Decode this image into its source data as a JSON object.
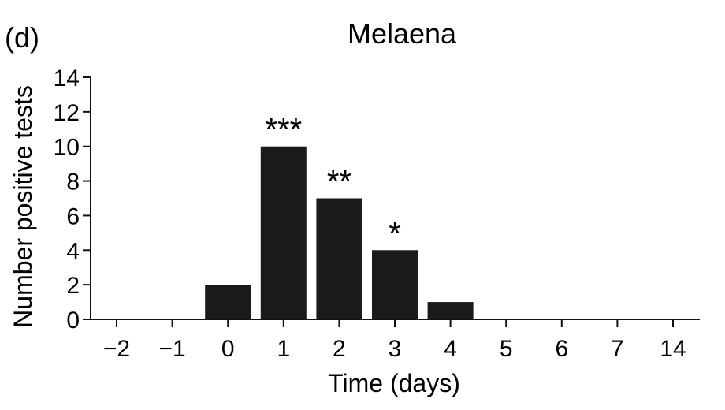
{
  "panel_label": "(d)",
  "chart_data": {
    "type": "bar",
    "title": "Melaena",
    "xlabel": "Time (days)",
    "ylabel": "Number positive tests",
    "categories": [
      "−2",
      "−1",
      "0",
      "1",
      "2",
      "3",
      "4",
      "5",
      "6",
      "7",
      "14"
    ],
    "values": [
      0,
      0,
      2,
      10,
      7,
      4,
      1,
      0,
      0,
      0,
      0
    ],
    "annotations": [
      "",
      "",
      "",
      "***",
      "**",
      "*",
      "",
      "",
      "",
      "",
      ""
    ],
    "ylim": [
      0,
      14
    ],
    "yticks": [
      "0",
      "2",
      "4",
      "6",
      "8",
      "10",
      "12",
      "14"
    ],
    "bar_color": "#1a1a1a",
    "grid": false,
    "legend": "none"
  }
}
